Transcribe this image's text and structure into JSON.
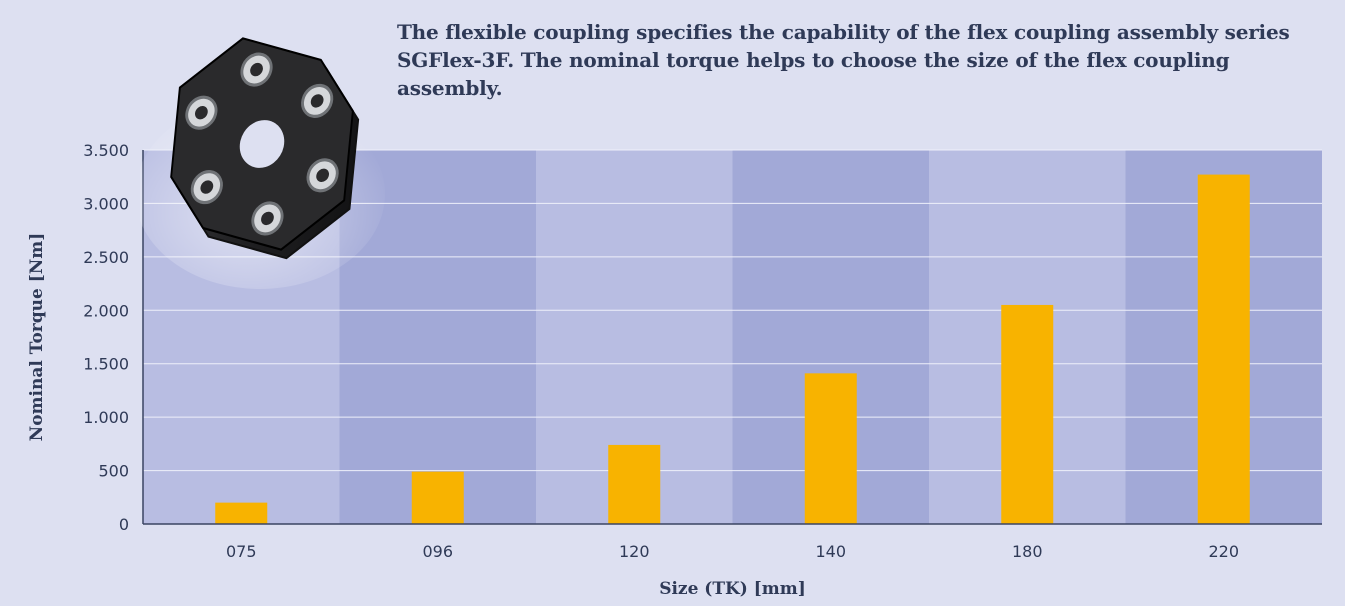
{
  "description": "The flexible coupling specifies the capability of the flex coupling assembly series SGFlex-3F. The nominal torque helps to choose the size of the flex coupling assembly.",
  "product_image": {
    "icon": "flexible-coupling-icon"
  },
  "colors": {
    "background": "#dde0f1",
    "band_light": "#b8bde2",
    "band_dark": "#a2a9d7",
    "bar": "#f8b300",
    "axis": "#3a4463",
    "text": "#2f3a57"
  },
  "chart_data": {
    "type": "bar",
    "categories": [
      "075",
      "096",
      "120",
      "140",
      "180",
      "220"
    ],
    "series": [
      {
        "values": [
          200,
          490,
          740,
          1410,
          2050,
          3270
        ]
      }
    ],
    "xlabel": "Size (TK) [mm]",
    "ylabel": "Nominal Torque [Nm]",
    "ylim": [
      0,
      3500
    ],
    "yticks": [
      0,
      500,
      1000,
      1500,
      2000,
      2500,
      3000,
      3500
    ],
    "ytick_labels": [
      "0",
      "500",
      "1.000",
      "1.500",
      "2.000",
      "2.500",
      "3.000",
      "3.500"
    ],
    "grid": true,
    "legend": "none"
  }
}
